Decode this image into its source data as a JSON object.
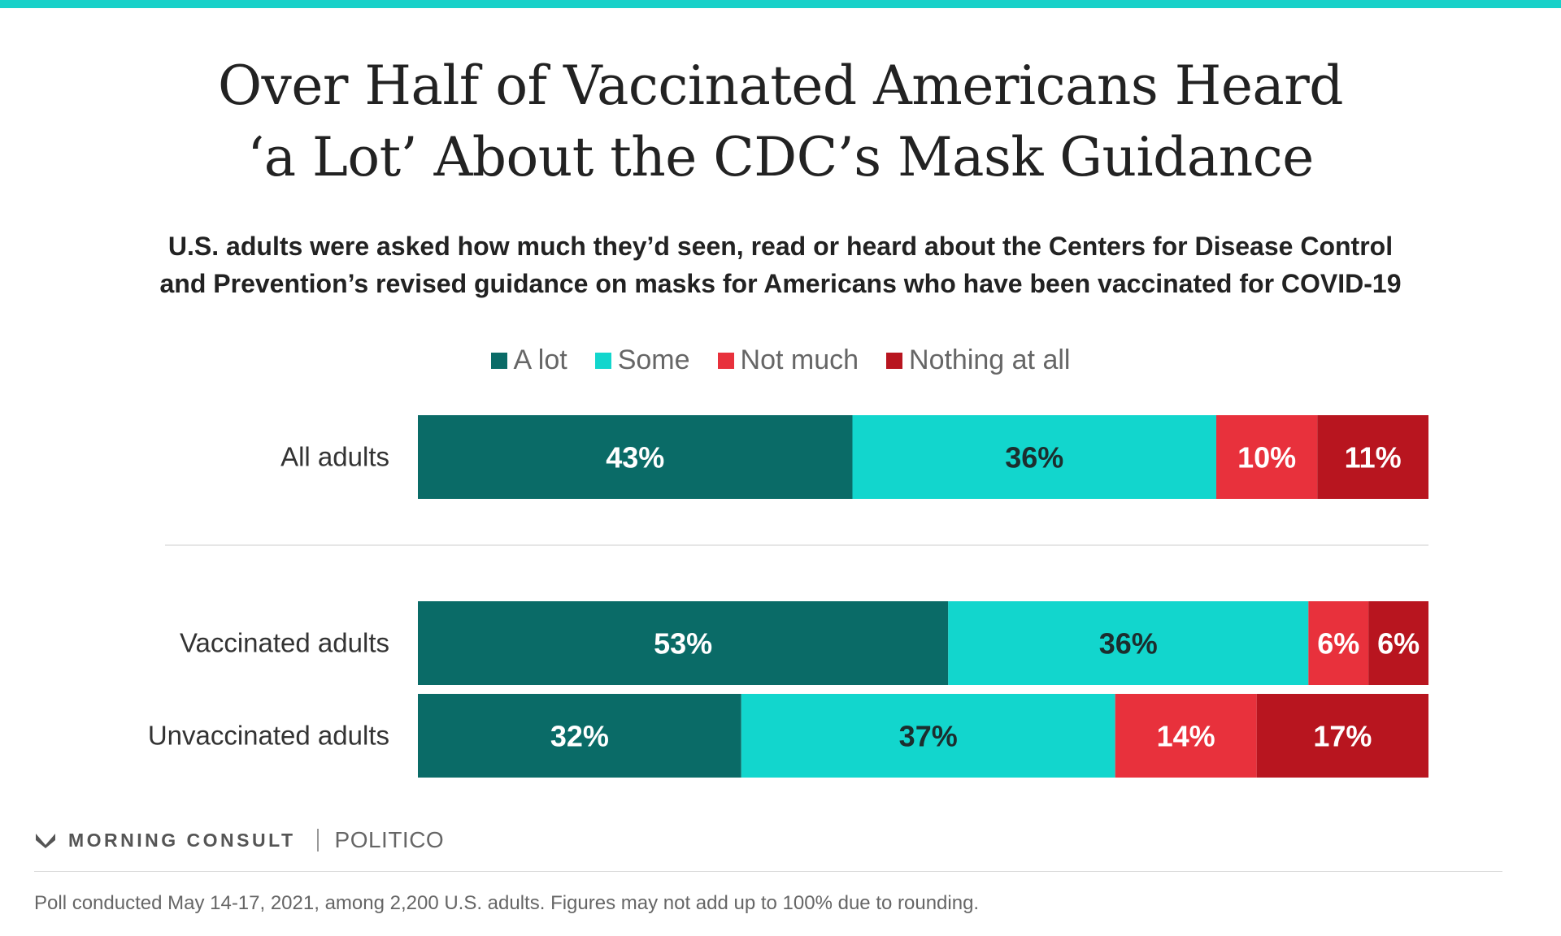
{
  "page": {
    "accent_color": "#18d1c9"
  },
  "header": {
    "title_line1": "Over Half of Vaccinated Americans Heard",
    "title_line2": "‘a Lot’ About the CDC’s Mask Guidance",
    "subtitle_line1": "U.S. adults were asked how much they’d seen, read or heard about the Centers for Disease Control",
    "subtitle_line2": "and Prevention’s revised guidance on masks for Americans who have been vaccinated for COVID-19"
  },
  "chart_data": {
    "type": "bar",
    "orientation": "horizontal",
    "stacked": true,
    "categories": [
      "All adults",
      "Vaccinated adults",
      "Unvaccinated adults"
    ],
    "series": [
      {
        "name": "A lot",
        "color": "#0a6b67",
        "label_color": "#ffffff",
        "values": [
          43,
          53,
          32
        ],
        "labels": [
          "43%",
          "53%",
          "32%"
        ]
      },
      {
        "name": "Some",
        "color": "#12d6cd",
        "label_color": "#1c2e2e",
        "values": [
          36,
          36,
          37
        ],
        "labels": [
          "36%",
          "36%",
          "37%"
        ]
      },
      {
        "name": "Not much",
        "color": "#e8313c",
        "label_color": "#ffffff",
        "values": [
          10,
          6,
          14
        ],
        "labels": [
          "10%",
          "6%",
          "14%"
        ]
      },
      {
        "name": "Nothing at all",
        "color": "#b8151f",
        "label_color": "#ffffff",
        "values": [
          11,
          6,
          17
        ],
        "labels": [
          "11%",
          "6%",
          "17%"
        ]
      }
    ],
    "legend_position": "top-center",
    "grid": false
  },
  "branding": {
    "publisher": "MORNING CONSULT",
    "partner": "POLITICO",
    "logo_icon": "morning-consult-logo-icon"
  },
  "footnote": "Poll conducted May 14-17, 2021, among 2,200 U.S. adults. Figures may not add up to 100% due to rounding."
}
